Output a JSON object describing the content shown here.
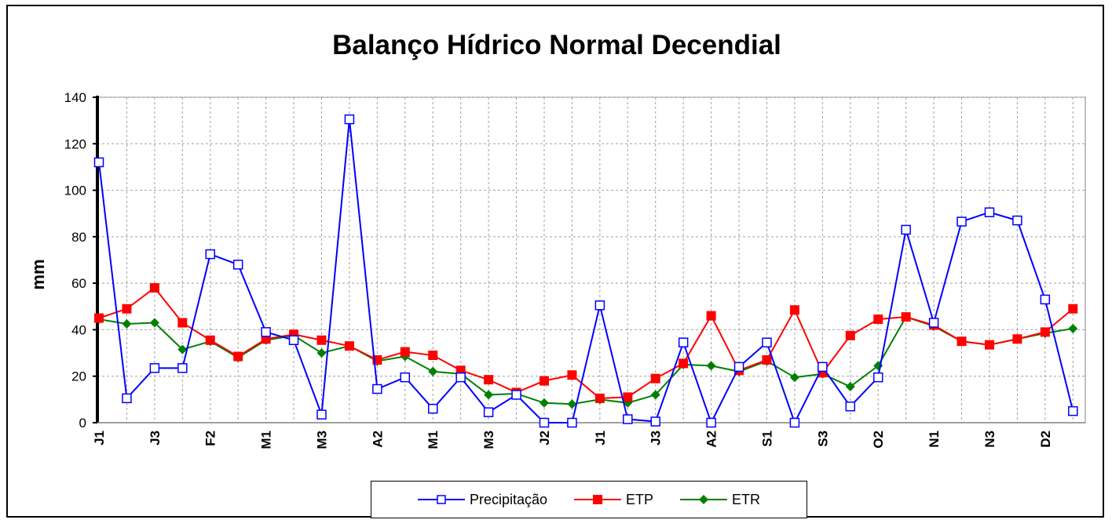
{
  "chart_data": {
    "type": "line",
    "title": "Balanço Hídrico Normal Decendial",
    "ylabel": "mm",
    "xlabel": "",
    "ylim": [
      0,
      140
    ],
    "yticks": [
      0,
      20,
      40,
      60,
      80,
      100,
      120,
      140
    ],
    "grid": true,
    "legend_position": "bottom",
    "x_tick_labels": [
      "J1",
      "",
      "J3",
      "",
      "F2",
      "",
      "M1",
      "",
      "M3",
      "",
      "A2",
      "",
      "M1",
      "",
      "M3",
      "",
      "J2",
      "",
      "J1",
      "",
      "J3",
      "",
      "A2",
      "",
      "S1",
      "",
      "S3",
      "",
      "O2",
      "",
      "N1",
      "",
      "N3",
      "",
      "D2",
      ""
    ],
    "series": [
      {
        "name": "Precipitação",
        "color": "#0000ff",
        "marker": "open-square",
        "values": [
          112,
          10.5,
          23.5,
          23.5,
          72.5,
          68,
          39,
          35.5,
          3.5,
          130.5,
          14.5,
          19.5,
          6,
          19.5,
          4.5,
          12,
          0,
          0,
          50.5,
          1.5,
          0.5,
          34.5,
          0,
          24,
          34.5,
          0,
          24,
          7,
          19.5,
          83,
          43,
          86.5,
          90.5,
          87,
          53,
          5
        ]
      },
      {
        "name": "ETP",
        "color": "#ff0000",
        "marker": "filled-square",
        "values": [
          45,
          49,
          58,
          43,
          35.5,
          28.5,
          36,
          38,
          35.5,
          33,
          27,
          30.5,
          29,
          22.5,
          18.5,
          13,
          18,
          20.5,
          10.5,
          11,
          19,
          25.5,
          46,
          22.5,
          27,
          48.5,
          21.5,
          37.5,
          44.5,
          45.5,
          42,
          35,
          33.5,
          36,
          39,
          49
        ]
      },
      {
        "name": "ETR",
        "color": "#008000",
        "marker": "filled-diamond",
        "values": [
          44.5,
          42.5,
          43,
          31.5,
          35,
          28,
          35.5,
          37.5,
          30,
          33,
          26.5,
          28.5,
          22,
          21,
          12,
          12.5,
          8.5,
          8,
          10,
          8.5,
          12,
          25,
          24.5,
          22,
          26.5,
          19.5,
          21,
          15.5,
          24.5,
          45.5,
          41.5,
          35,
          33.5,
          36,
          38.5,
          40.5
        ]
      }
    ]
  }
}
